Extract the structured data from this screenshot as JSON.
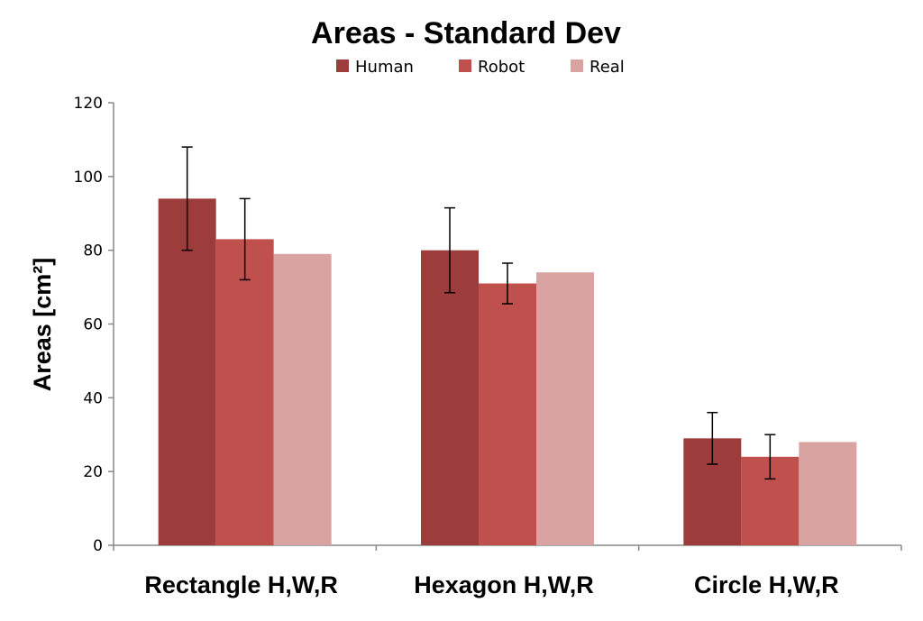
{
  "chart_data": {
    "type": "bar",
    "title": "Areas - Standard Dev",
    "xlabel": "",
    "ylabel": "Areas [cm²]",
    "ylim": [
      0,
      120
    ],
    "yticks": [
      0,
      20,
      40,
      60,
      80,
      100,
      120
    ],
    "grid": false,
    "legend_position": "top-center",
    "categories": [
      "Rectangle H,W,R",
      "Hexagon H,W,R",
      "Circle H,W,R"
    ],
    "series": [
      {
        "name": "Human",
        "color": "#9c3d3c",
        "values": [
          94,
          80,
          29
        ],
        "error": [
          14,
          11.5,
          7
        ]
      },
      {
        "name": "Robot",
        "color": "#c0504d",
        "values": [
          83,
          71,
          24
        ],
        "error": [
          11,
          5.5,
          6
        ]
      },
      {
        "name": "Real",
        "color": "#d9a3a2",
        "values": [
          79,
          74,
          28
        ],
        "error": null
      }
    ]
  }
}
